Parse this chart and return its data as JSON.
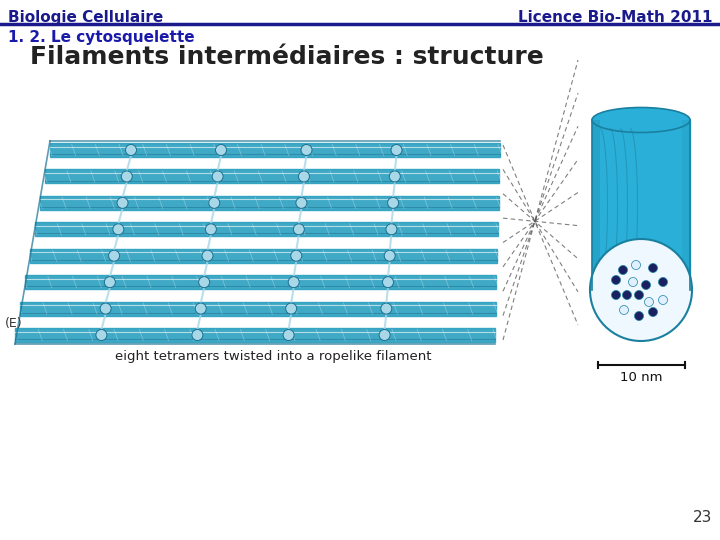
{
  "header_left": "Biologie Cellulaire",
  "header_right": "Licence Bio-Math 2011",
  "header_line_color": "#1a1a8c",
  "header_text_color": "#1a1a8c",
  "subtitle": "1. 2. Le cytosquelette",
  "subtitle_color": "#1a1aaa",
  "title": "Filaments intermédiaires : structure",
  "title_color": "#222222",
  "page_number": "23",
  "background_color": "#ffffff",
  "header_font_size": 11,
  "subtitle_font_size": 11,
  "title_font_size": 18,
  "page_number_font_size": 11,
  "strand_color_main": "#2ba0c0",
  "strand_color_dark": "#1a7090",
  "strand_color_light": "#a8d8e8",
  "connector_color": "#b0c8d8",
  "dashed_color": "#555555",
  "cylinder_color": "#2ab0d8",
  "cylinder_dark": "#1a80a0",
  "cylinder_end_bg": "#f0f8ff",
  "dot_dark": "#1a2060",
  "dot_light": "#e0f0ff"
}
